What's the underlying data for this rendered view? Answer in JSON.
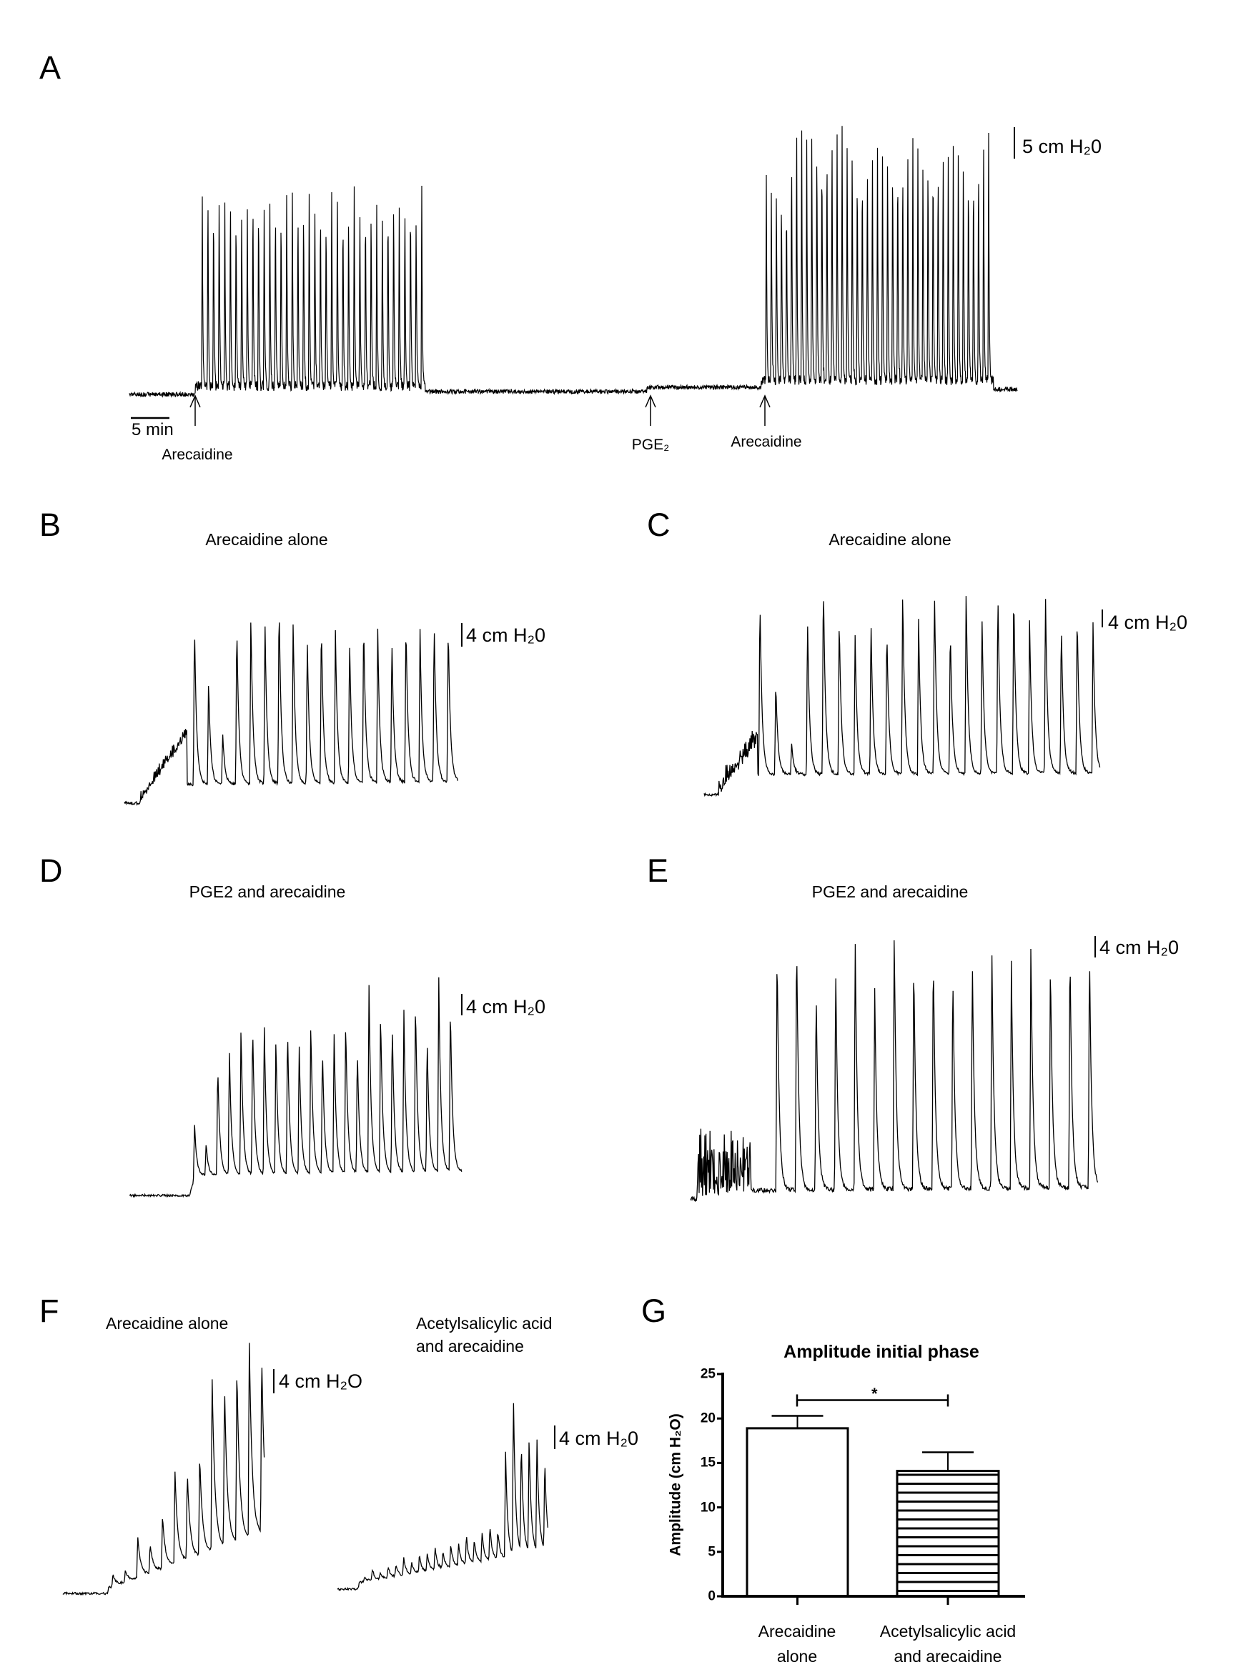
{
  "panels": {
    "A": "A",
    "B": "B",
    "C": "C",
    "D": "D",
    "E": "E",
    "F": "F",
    "G": "G"
  },
  "chart_data": [
    {
      "panel": "A",
      "type": "line",
      "scale_bar_y": "5 cm H₂0",
      "scale_bar_x": "5 min",
      "annotations": [
        "Arecaidine",
        "PGE₂",
        "Arecaidine"
      ],
      "bursts": [
        {
          "after": "Arecaidine",
          "spike_count": 40,
          "approx_amplitude_cm_h2o": 33
        },
        {
          "after": "PGE₂ then Arecaidine",
          "spike_count": 45,
          "approx_amplitude_cm_h2o": 45
        }
      ]
    },
    {
      "panel": "B",
      "type": "line",
      "title": "Arecaidine alone",
      "scale_bar_y": "4 cm H₂0",
      "peak_amplitudes_cm_h2o": [
        28,
        18,
        9,
        28,
        29,
        28,
        32,
        28,
        25,
        28,
        26,
        25,
        28,
        26,
        25,
        28,
        26,
        28,
        27
      ]
    },
    {
      "panel": "C",
      "type": "line",
      "title": "Arecaidine alone",
      "scale_bar_y": "4 cm H₂0",
      "peak_amplitudes_cm_h2o": [
        40,
        21,
        7,
        35,
        44,
        35,
        31,
        35,
        33,
        41,
        35,
        42,
        33,
        41,
        35,
        41,
        42,
        34,
        40,
        34,
        36,
        33
      ]
    },
    {
      "panel": "D",
      "type": "line",
      "title": "PGE2 and arecaidine",
      "scale_bar_y": "4 cm H₂0",
      "peak_amplitudes_cm_h2o": [
        10,
        6,
        21,
        24,
        28,
        29,
        29,
        26,
        28,
        25,
        29,
        24,
        27,
        29,
        24,
        36,
        31,
        29,
        31,
        33,
        26,
        37,
        32
      ]
    },
    {
      "panel": "E",
      "type": "line",
      "title": "PGE2 and arecaidine",
      "scale_bar_y": "4 cm H₂0",
      "peak_amplitudes_cm_h2o": [
        46,
        49,
        39,
        43,
        48,
        38,
        49,
        44,
        46,
        42,
        44,
        46,
        43,
        46,
        44,
        46,
        46
      ]
    },
    {
      "panel": "F",
      "type": "line",
      "title": "Arecaidine alone",
      "scale_bar_y": "4 cm H₂O",
      "peak_amplitudes_cm_h2o": [
        2,
        2,
        7,
        5,
        9,
        16,
        15,
        17,
        30,
        28,
        30,
        34,
        31
      ]
    },
    {
      "panel": "F",
      "type": "line",
      "title": "Acetylsalicylic acid\nand arecaidine",
      "scale_bar_y": "4 cm H₂0",
      "peak_amplitudes_cm_h2o": [
        1,
        2,
        1,
        2,
        2,
        3,
        2,
        3,
        3,
        4,
        3,
        4,
        4,
        5,
        4,
        5,
        6,
        5,
        18,
        28,
        20,
        20,
        20,
        16
      ]
    },
    {
      "panel": "G",
      "type": "bar",
      "title": "Amplitude initial phase",
      "ylabel": "Amplitude (cm H₂O)",
      "xlabel": "",
      "categories": [
        "Arecaidine\nalone",
        "Acetylsalicylic acid\nand arecaidine"
      ],
      "values": [
        18.9,
        14.1
      ],
      "errors": [
        1.4,
        2.1
      ],
      "fills": [
        "open",
        "horizontal-hatch"
      ],
      "ylim": [
        0,
        25
      ],
      "yticks": [
        0,
        5,
        10,
        15,
        20,
        25
      ],
      "significance": {
        "pair": [
          0,
          1
        ],
        "label": "*"
      },
      "grid": false
    }
  ]
}
